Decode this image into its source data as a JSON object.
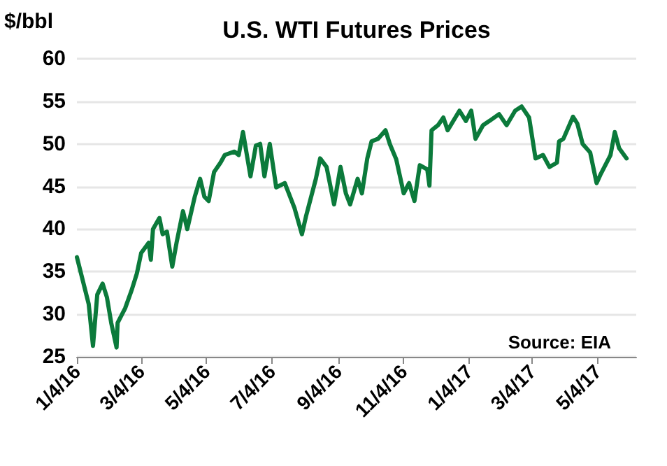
{
  "chart_data": {
    "type": "line",
    "title": "U.S. WTI Futures Prices",
    "ylabel": "$/bbl",
    "annotations": [
      "Source: EIA"
    ],
    "x": [
      "2016-01-04",
      "2016-01-15",
      "2016-01-19",
      "2016-01-23",
      "2016-01-28",
      "2016-02-01",
      "2016-02-05",
      "2016-02-10",
      "2016-02-11",
      "2016-02-18",
      "2016-02-24",
      "2016-02-29",
      "2016-03-04",
      "2016-03-11",
      "2016-03-13",
      "2016-03-15",
      "2016-03-21",
      "2016-03-24",
      "2016-03-28",
      "2016-04-02",
      "2016-04-06",
      "2016-04-12",
      "2016-04-16",
      "2016-04-23",
      "2016-04-28",
      "2016-05-02",
      "2016-05-06",
      "2016-05-11",
      "2016-05-17",
      "2016-05-21",
      "2016-05-30",
      "2016-06-03",
      "2016-06-07",
      "2016-06-14",
      "2016-06-19",
      "2016-06-23",
      "2016-06-27",
      "2016-07-02",
      "2016-07-08",
      "2016-07-16",
      "2016-07-25",
      "2016-08-01",
      "2016-08-05",
      "2016-08-14",
      "2016-08-18",
      "2016-08-24",
      "2016-08-31",
      "2016-09-06",
      "2016-09-11",
      "2016-09-15",
      "2016-09-22",
      "2016-09-26",
      "2016-10-01",
      "2016-10-05",
      "2016-10-11",
      "2016-10-18",
      "2016-10-22",
      "2016-10-28",
      "2016-11-04",
      "2016-11-09",
      "2016-11-14",
      "2016-11-19",
      "2016-11-26",
      "2016-11-28",
      "2016-11-30",
      "2016-12-06",
      "2016-12-11",
      "2016-12-15",
      "2016-12-26",
      "2017-01-01",
      "2017-01-06",
      "2017-01-10",
      "2017-01-17",
      "2017-01-23",
      "2017-02-01",
      "2017-02-08",
      "2017-02-16",
      "2017-02-22",
      "2017-03-01",
      "2017-03-07",
      "2017-03-14",
      "2017-03-20",
      "2017-03-27",
      "2017-03-29",
      "2017-04-02",
      "2017-04-11",
      "2017-04-15",
      "2017-04-20",
      "2017-04-27",
      "2017-05-03",
      "2017-05-07",
      "2017-05-16",
      "2017-05-20",
      "2017-05-24",
      "2017-05-31"
    ],
    "series": [
      {
        "color": "#0b7a3b",
        "values": [
          36.7,
          31.2,
          26.3,
          32.3,
          33.6,
          32,
          29,
          26.1,
          29,
          30.7,
          32.8,
          34.8,
          37.2,
          38.4,
          36.4,
          40,
          41.3,
          39.4,
          39.7,
          35.6,
          38.4,
          42.1,
          40,
          43.8,
          45.9,
          43.8,
          43.3,
          46.7,
          47.8,
          48.7,
          49.1,
          48.7,
          51.4,
          46.2,
          49.8,
          50,
          46.2,
          50,
          44.9,
          45.4,
          42.5,
          39.4,
          41.6,
          45.9,
          48.3,
          47.3,
          42.9,
          47.3,
          44.2,
          42.9,
          45.9,
          44.2,
          48.3,
          50.3,
          50.6,
          51.6,
          50,
          48.2,
          44.2,
          45.4,
          43.3,
          47.5,
          47,
          45.1,
          51.6,
          52.2,
          53.1,
          51.6,
          53.9,
          52.7,
          53.9,
          50.6,
          52.2,
          52.7,
          53.5,
          52.2,
          53.9,
          54.4,
          53.1,
          48.3,
          48.7,
          47.3,
          47.8,
          50.3,
          50.6,
          53.2,
          52.4,
          50,
          49,
          45.4,
          46.5,
          48.7,
          51.4,
          49.5,
          48.3
        ]
      }
    ],
    "xlim": [
      "2016-01-04",
      "2017-06-09"
    ],
    "xticks": [
      {
        "value": "2016-01-04",
        "label": "1/4/16"
      },
      {
        "value": "2016-03-04",
        "label": "3/4/16"
      },
      {
        "value": "2016-05-04",
        "label": "5/4/16"
      },
      {
        "value": "2016-07-04",
        "label": "7/4/16"
      },
      {
        "value": "2016-09-04",
        "label": "9/4/16"
      },
      {
        "value": "2016-11-04",
        "label": "11/4/16"
      },
      {
        "value": "2017-01-04",
        "label": "1/4/17"
      },
      {
        "value": "2017-03-04",
        "label": "3/4/17"
      },
      {
        "value": "2017-05-04",
        "label": "5/4/17"
      }
    ],
    "ylim": [
      25,
      60
    ],
    "yticks": [
      25,
      30,
      35,
      40,
      45,
      50,
      55,
      60
    ],
    "grid": "y",
    "marker": "none",
    "line_style": "solid"
  }
}
